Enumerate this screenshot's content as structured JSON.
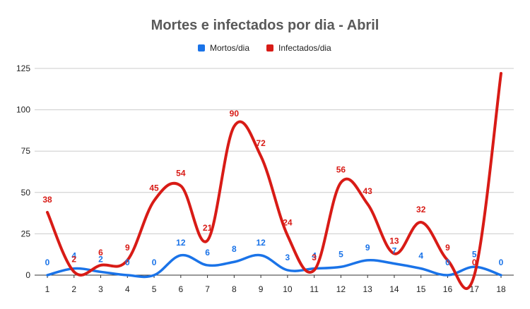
{
  "colors": {
    "mortos": "#1a73e8",
    "infectados": "#d81b16",
    "grid": "#cccccc",
    "axis": "#333333",
    "title": "#595959"
  },
  "chart_data": {
    "type": "line",
    "title": "Mortes e infectados por dia - Abril",
    "xlabel": "",
    "ylabel": "",
    "categories": [
      "1",
      "2",
      "3",
      "4",
      "5",
      "6",
      "7",
      "8",
      "9",
      "10",
      "11",
      "12",
      "13",
      "14",
      "15",
      "16",
      "17",
      "18"
    ],
    "ylim": [
      0,
      125
    ],
    "yticks": [
      0,
      25,
      50,
      75,
      100,
      125
    ],
    "grid": true,
    "legend": "top",
    "smooth": true,
    "series": [
      {
        "name": "Mortos/dia",
        "color": "#1a73e8",
        "values": [
          0,
          4,
          2,
          0,
          0,
          12,
          6,
          8,
          12,
          3,
          4,
          5,
          9,
          7,
          4,
          0,
          5,
          0
        ]
      },
      {
        "name": "Infectados/dia",
        "color": "#d81b16",
        "values": [
          38,
          2,
          6,
          9,
          45,
          54,
          21,
          90,
          72,
          24,
          3,
          56,
          43,
          13,
          32,
          9,
          0,
          122
        ],
        "labels": [
          "38",
          "2",
          "6",
          "9",
          "45",
          "54",
          "21",
          "90",
          "72",
          "24",
          "3",
          "56",
          "43",
          "13",
          "32",
          "9",
          "0",
          ""
        ]
      }
    ]
  }
}
